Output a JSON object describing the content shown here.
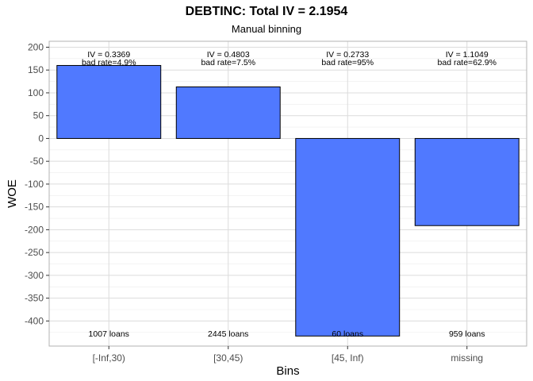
{
  "chart_data": {
    "type": "bar",
    "title": "DEBTINC: Total IV = 2.1954",
    "subtitle": "Manual binning",
    "xlabel": "Bins",
    "ylabel": "WOE",
    "categories": [
      "[-Inf,30)",
      "[30,45)",
      "[45, Inf)",
      "missing"
    ],
    "values": [
      160,
      113,
      -433,
      -191
    ],
    "ylim": [
      -455,
      213
    ],
    "yticks": [
      200,
      150,
      100,
      50,
      0,
      -50,
      -100,
      -150,
      -200,
      -250,
      -300,
      -350,
      -400
    ],
    "iv_labels": [
      "IV = 0.3369",
      "IV = 0.4803",
      "IV = 0.2733",
      "IV = 1.1049"
    ],
    "bad_rate_labels": [
      "bad rate=4.9%",
      "bad rate=7.5%",
      "bad rate=95%",
      "bad rate=62.9%"
    ],
    "count_labels": [
      "1007 loans",
      "2445 loans",
      "60 loans",
      "959 loans"
    ],
    "bar_color": "#5079FF",
    "bar_border": "#000000",
    "grid": true,
    "panel_border": "#b3b3b3"
  }
}
